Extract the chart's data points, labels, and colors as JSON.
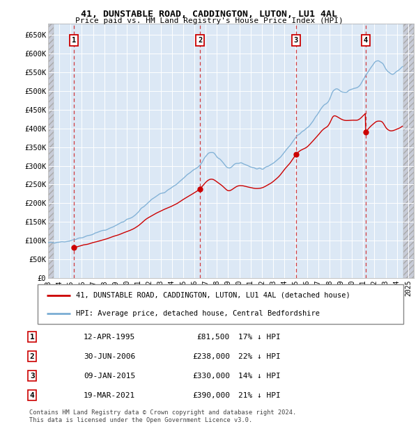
{
  "title1": "41, DUNSTABLE ROAD, CADDINGTON, LUTON, LU1 4AL",
  "title2": "Price paid vs. HM Land Registry's House Price Index (HPI)",
  "xlim_start": 1993.0,
  "xlim_end": 2025.5,
  "ylim_min": 0,
  "ylim_max": 680000,
  "yticks": [
    0,
    50000,
    100000,
    150000,
    200000,
    250000,
    300000,
    350000,
    400000,
    450000,
    500000,
    550000,
    600000,
    650000
  ],
  "ytick_labels": [
    "£0",
    "£50K",
    "£100K",
    "£150K",
    "£200K",
    "£250K",
    "£300K",
    "£350K",
    "£400K",
    "£450K",
    "£500K",
    "£550K",
    "£600K",
    "£650K"
  ],
  "xticks": [
    1993,
    1994,
    1995,
    1996,
    1997,
    1998,
    1999,
    2000,
    2001,
    2002,
    2003,
    2004,
    2005,
    2006,
    2007,
    2008,
    2009,
    2010,
    2011,
    2012,
    2013,
    2014,
    2015,
    2016,
    2017,
    2018,
    2019,
    2020,
    2021,
    2022,
    2023,
    2024,
    2025
  ],
  "sales": [
    {
      "year": 1995.278,
      "price": 81500,
      "label": "1"
    },
    {
      "year": 2006.496,
      "price": 238000,
      "label": "2"
    },
    {
      "year": 2015.027,
      "price": 330000,
      "label": "3"
    },
    {
      "year": 2021.215,
      "price": 390000,
      "label": "4"
    }
  ],
  "legend_entries": [
    "41, DUNSTABLE ROAD, CADDINGTON, LUTON, LU1 4AL (detached house)",
    "HPI: Average price, detached house, Central Bedfordshire"
  ],
  "table_rows": [
    {
      "num": "1",
      "date": "12-APR-1995",
      "price": "£81,500",
      "note": "17% ↓ HPI"
    },
    {
      "num": "2",
      "date": "30-JUN-2006",
      "price": "£238,000",
      "note": "22% ↓ HPI"
    },
    {
      "num": "3",
      "date": "09-JAN-2015",
      "price": "£330,000",
      "note": "14% ↓ HPI"
    },
    {
      "num": "4",
      "date": "19-MAR-2021",
      "price": "£390,000",
      "note": "21% ↓ HPI"
    }
  ],
  "footnote1": "Contains HM Land Registry data © Crown copyright and database right 2024.",
  "footnote2": "This data is licensed under the Open Government Licence v3.0.",
  "hpi_color": "#7aadd4",
  "sale_color": "#cc0000",
  "plot_bg": "#dce8f5"
}
